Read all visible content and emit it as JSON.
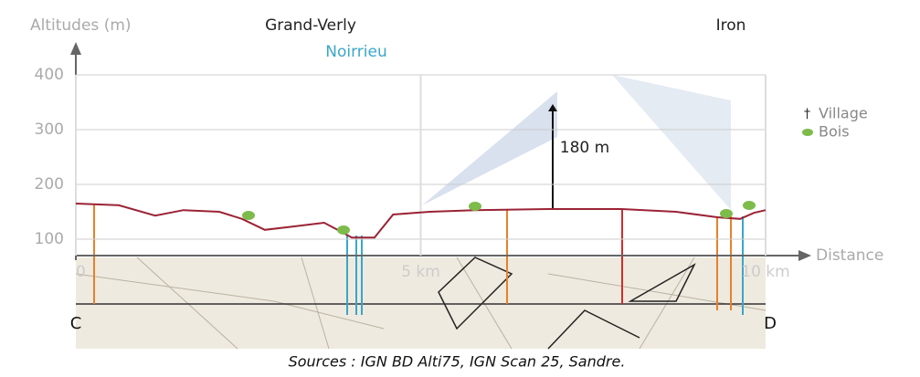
{
  "chart_data": {
    "type": "line",
    "y_label": "Altitudes (m)",
    "x_label": "Distance",
    "x": [
      0,
      0.62,
      1.15,
      1.56,
      2.08,
      2.41,
      2.74,
      3.14,
      3.6,
      3.87,
      4.0,
      4.33,
      4.6,
      5.13,
      5.79,
      6.85,
      7.91,
      8.7,
      9.3,
      9.63,
      9.83,
      10
    ],
    "series": [
      {
        "color": "#9b2335",
        "values": [
          165,
          162,
          143,
          153,
          150,
          137,
          117,
          123,
          130,
          112,
          103,
          103,
          145,
          150,
          153,
          155,
          155,
          150,
          140,
          137,
          148,
          153
        ]
      }
    ],
    "xlim": [
      0,
      10
    ],
    "xticks": [
      0,
      {
        "value": 5,
        "label": "5 km"
      },
      {
        "value": 10,
        "label": "10 km"
      }
    ],
    "ylim": [
      70,
      450
    ],
    "yticks": [
      100,
      200,
      300,
      400
    ],
    "grid": true,
    "legend": [
      "Village",
      "Bois"
    ],
    "annotations": [
      "Grand-Verly",
      "Noirrieu",
      "Iron",
      "180 m"
    ],
    "endpoints": [
      "C",
      "D"
    ],
    "source": "Sources : IGN BD Alti75, IGN Scan 25, Sandre."
  }
}
